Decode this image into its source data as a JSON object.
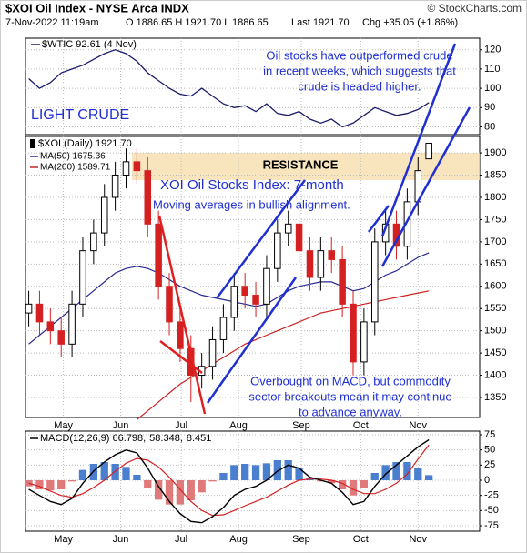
{
  "header": {
    "title": "$XOI Oil Index - NYSE Arca INDX",
    "source": "© StockCharts.com",
    "date": "7-Nov-2022 11:19am",
    "ohlc": "O 1886.65 H 1921.70 L 1886.65",
    "last": "Last 1921.70",
    "change": "Chg +35.05 (+1.86%)"
  },
  "chart_data": [
    {
      "type": "line",
      "series": [
        {
          "name": "$WTIC 92.61 (4 Nov)",
          "color": "#1c1c6b",
          "values": [
            105,
            100,
            103,
            108,
            110,
            112,
            115,
            118,
            120,
            118,
            114,
            108,
            104,
            100,
            97,
            96,
            100,
            96,
            92,
            90,
            91,
            88,
            92,
            87,
            86,
            88,
            84,
            82,
            84,
            80,
            82,
            86,
            90,
            88,
            86,
            87,
            89,
            92.61
          ]
        }
      ],
      "xlim": [
        -0.3,
        41.7
      ],
      "ylim": [
        76,
        126
      ],
      "yticks": [
        80,
        90,
        100,
        110,
        120
      ],
      "grid": true,
      "annotations": [
        "Oil stocks have outperformed crude",
        "in recent weeks, which suggests that",
        "crude is headed higher.",
        "LIGHT CRUDE"
      ]
    },
    {
      "type": "candlestick",
      "name": "$XOI (Daily) 1921.70",
      "up_color": "#000000",
      "down_color": "#d42020",
      "open": [
        1540,
        1560,
        1520,
        1500,
        1470,
        1560,
        1680,
        1720,
        1800,
        1850,
        1880,
        1860,
        1740,
        1600,
        1520,
        1460,
        1400,
        1420,
        1480,
        1530,
        1600,
        1580,
        1560,
        1640,
        1720,
        1740,
        1680,
        1620,
        1680,
        1660,
        1560,
        1430,
        1520,
        1700,
        1740,
        1690,
        1790,
        1886.65
      ],
      "high": [
        1590,
        1590,
        1550,
        1530,
        1590,
        1710,
        1750,
        1830,
        1880,
        1910,
        1910,
        1890,
        1770,
        1630,
        1550,
        1490,
        1450,
        1510,
        1560,
        1630,
        1630,
        1610,
        1670,
        1750,
        1770,
        1770,
        1710,
        1710,
        1710,
        1690,
        1590,
        1550,
        1730,
        1770,
        1770,
        1820,
        1890,
        1921.7
      ],
      "low": [
        1510,
        1490,
        1470,
        1440,
        1440,
        1530,
        1650,
        1690,
        1770,
        1820,
        1830,
        1710,
        1570,
        1490,
        1430,
        1340,
        1370,
        1390,
        1450,
        1500,
        1550,
        1530,
        1530,
        1610,
        1690,
        1650,
        1590,
        1590,
        1630,
        1530,
        1400,
        1400,
        1490,
        1670,
        1660,
        1660,
        1760,
        1886.65
      ],
      "close": [
        1560,
        1520,
        1500,
        1470,
        1560,
        1680,
        1720,
        1800,
        1850,
        1880,
        1860,
        1740,
        1600,
        1520,
        1460,
        1400,
        1420,
        1480,
        1530,
        1600,
        1580,
        1560,
        1640,
        1720,
        1740,
        1680,
        1620,
        1680,
        1660,
        1560,
        1430,
        1520,
        1700,
        1740,
        1690,
        1790,
        1860,
        1921.7
      ],
      "series": [
        {
          "name": "MA(50) 1675.36",
          "color": "#2a2a90",
          "values": [
            1470,
            1490,
            1510,
            1530,
            1550,
            1570,
            1590,
            1610,
            1630,
            1640,
            1645,
            1640,
            1630,
            1615,
            1600,
            1590,
            1580,
            1575,
            1570,
            1565,
            1560,
            1555,
            1560,
            1575,
            1590,
            1600,
            1605,
            1610,
            1610,
            1600,
            1590,
            1595,
            1610,
            1625,
            1635,
            1650,
            1665,
            1675.36
          ]
        },
        {
          "name": "MA(200) 1589.71",
          "color": "#cc2222",
          "values": [
            null,
            null,
            null,
            null,
            null,
            null,
            null,
            null,
            null,
            null,
            1300,
            1320,
            1340,
            1360,
            1380,
            1395,
            1410,
            1425,
            1440,
            1455,
            1470,
            1480,
            1490,
            1500,
            1510,
            1520,
            1530,
            1540,
            1545,
            1550,
            1555,
            1560,
            1565,
            1570,
            1575,
            1580,
            1585,
            1589.71
          ]
        }
      ],
      "xlim": [
        -0.3,
        41.7
      ],
      "ylim": [
        1305,
        1937
      ],
      "yticks": [
        1350,
        1400,
        1450,
        1500,
        1550,
        1600,
        1650,
        1700,
        1750,
        1800,
        1850,
        1900
      ],
      "grid": true,
      "xticks": [
        {
          "value": 3.2,
          "label": "May"
        },
        {
          "value": 8.5,
          "label": "Jun"
        },
        {
          "value": 14.1,
          "label": "Jul"
        },
        {
          "value": 19.4,
          "label": "Aug"
        },
        {
          "value": 25.2,
          "label": "Sep"
        },
        {
          "value": 30.7,
          "label": "Oct"
        },
        {
          "value": 36.0,
          "label": "Nov"
        }
      ],
      "annotations": [
        "RESISTANCE",
        "XOI Oil Stocks Index: 7-month",
        "Moving averages in bullish alignment.",
        "Overbought on MACD, but commodity",
        "sector breakouts mean it may continue",
        "to advance anyway."
      ]
    },
    {
      "type": "macd",
      "legend": [
        "MACD(12,26,9) 66.798,",
        "58.348,",
        "8.451"
      ],
      "series": [
        {
          "name": "MACD",
          "color": "#000000",
          "values": [
            -15,
            -25,
            -35,
            -40,
            -30,
            -5,
            15,
            30,
            42,
            50,
            45,
            20,
            -10,
            -35,
            -55,
            -68,
            -70,
            -60,
            -45,
            -25,
            -15,
            -10,
            0,
            15,
            25,
            20,
            5,
            0,
            -5,
            -20,
            -40,
            -35,
            -10,
            10,
            25,
            40,
            55,
            66.798
          ]
        },
        {
          "name": "Signal",
          "color": "#d42020",
          "values": [
            -5,
            -10,
            -18,
            -25,
            -28,
            -22,
            -12,
            0,
            15,
            28,
            36,
            33,
            22,
            5,
            -15,
            -35,
            -50,
            -58,
            -57,
            -50,
            -42,
            -35,
            -28,
            -18,
            -8,
            0,
            2,
            2,
            0,
            -5,
            -15,
            -22,
            -22,
            -15,
            -5,
            10,
            35,
            58.348
          ]
        },
        {
          "name": "Histogram",
          "color": "#4a7fd0",
          "negative_color": "#e07a7a",
          "values": [
            -10,
            -15,
            -17,
            -15,
            -2,
            17,
            27,
            30,
            27,
            22,
            9,
            -13,
            -32,
            -40,
            -40,
            -33,
            -20,
            -2,
            12,
            25,
            27,
            25,
            28,
            33,
            33,
            20,
            3,
            -2,
            -5,
            -15,
            -25,
            -13,
            12,
            25,
            30,
            30,
            20,
            8.451
          ]
        }
      ],
      "xlim": [
        -0.3,
        41.7
      ],
      "ylim": [
        -84,
        81
      ],
      "yticks": [
        -75,
        -50,
        -25,
        0,
        25,
        50,
        75
      ],
      "grid": true,
      "xticks": [
        {
          "value": 3.2,
          "label": "May"
        },
        {
          "value": 8.5,
          "label": "Jun"
        },
        {
          "value": 14.1,
          "label": "Jul"
        },
        {
          "value": 19.4,
          "label": "Aug"
        },
        {
          "value": 25.2,
          "label": "Sep"
        },
        {
          "value": 30.7,
          "label": "Oct"
        },
        {
          "value": 36.0,
          "label": "Nov"
        }
      ]
    }
  ]
}
